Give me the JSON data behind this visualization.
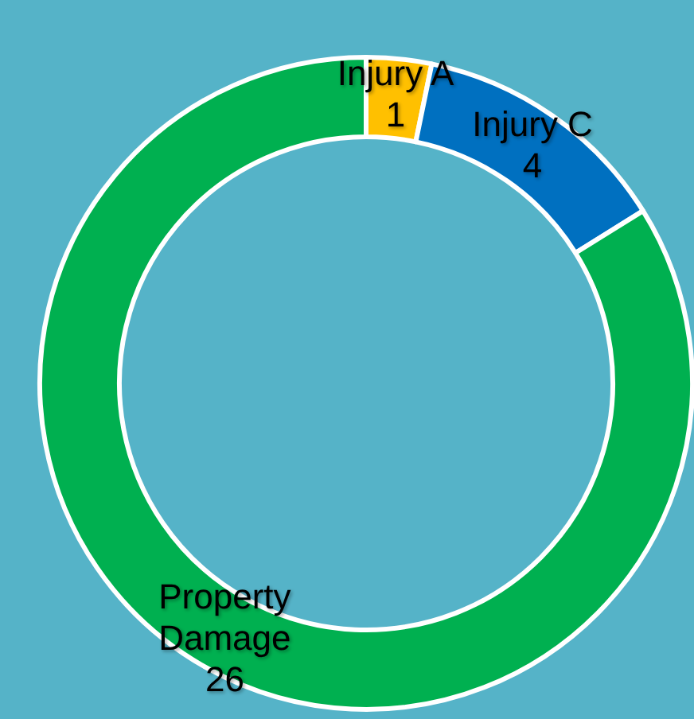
{
  "chart_data": {
    "type": "donut",
    "categories": [
      "Injury A",
      "Injury C",
      "Property Damage"
    ],
    "values": [
      1,
      4,
      26
    ],
    "colors": [
      "#ffc000",
      "#0070c0",
      "#00b050"
    ],
    "data_labels": true,
    "legend": false
  }
}
